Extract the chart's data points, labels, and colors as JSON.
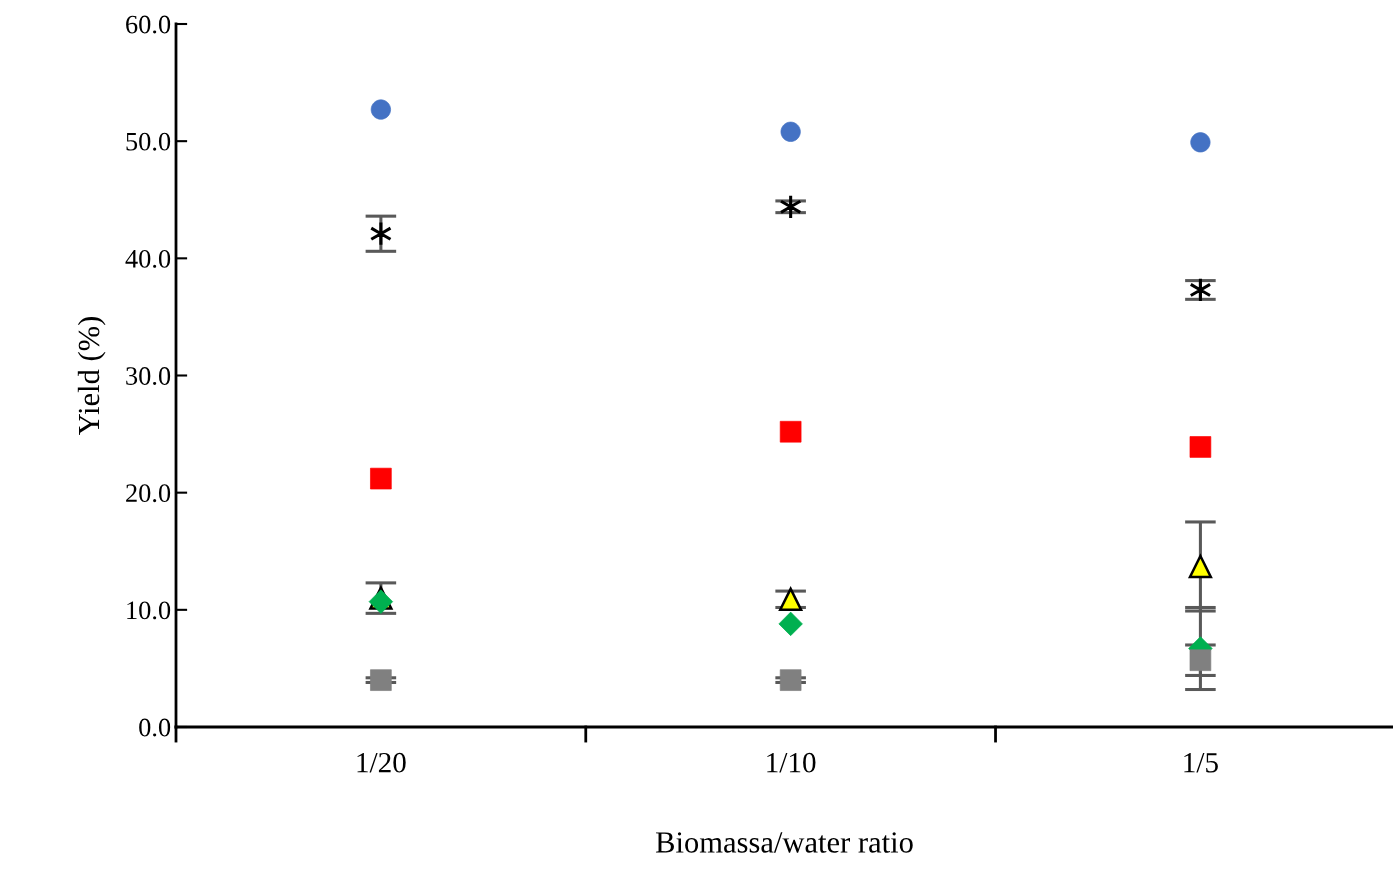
{
  "chart_data": {
    "type": "scatter",
    "xlabel": "Biomassa/water ratio",
    "ylabel": "Yield (%)",
    "categories": [
      "1/20",
      "1/10",
      "1/5"
    ],
    "ylim": [
      0,
      60
    ],
    "yticks": [
      {
        "value": 0,
        "label": "0.0"
      },
      {
        "value": 10,
        "label": "10.0"
      },
      {
        "value": 20,
        "label": "20.0"
      },
      {
        "value": 30,
        "label": "30.0"
      },
      {
        "value": 40,
        "label": "40.0"
      },
      {
        "value": 50,
        "label": "50.0"
      },
      {
        "value": 60,
        "label": "60.0"
      }
    ],
    "grid": false,
    "legend": false,
    "series": [
      {
        "color": "#4472c4",
        "marker": "circle",
        "values": [
          52.7,
          50.8,
          49.9
        ]
      },
      {
        "color": "#000000",
        "marker": "cross",
        "values": [
          42.1,
          44.4,
          37.3
        ],
        "errors": [
          1.5,
          0.5,
          0.8
        ]
      },
      {
        "color": "#ff0000",
        "marker": "square",
        "values": [
          21.2,
          25.2,
          23.9
        ]
      },
      {
        "color": "#ffff00",
        "marker": "triangle",
        "values": [
          11.0,
          10.9,
          13.7
        ],
        "errors": [
          1.3,
          0.7,
          3.8
        ]
      },
      {
        "color": "#00b050",
        "marker": "diamond",
        "values": [
          10.7,
          8.8,
          6.7
        ],
        "errors": [
          null,
          null,
          3.5
        ]
      },
      {
        "color": "#808080",
        "marker": "square",
        "values": [
          4.0,
          4.0,
          5.7
        ],
        "errors": [
          0.2,
          0.2,
          1.3
        ]
      }
    ]
  }
}
